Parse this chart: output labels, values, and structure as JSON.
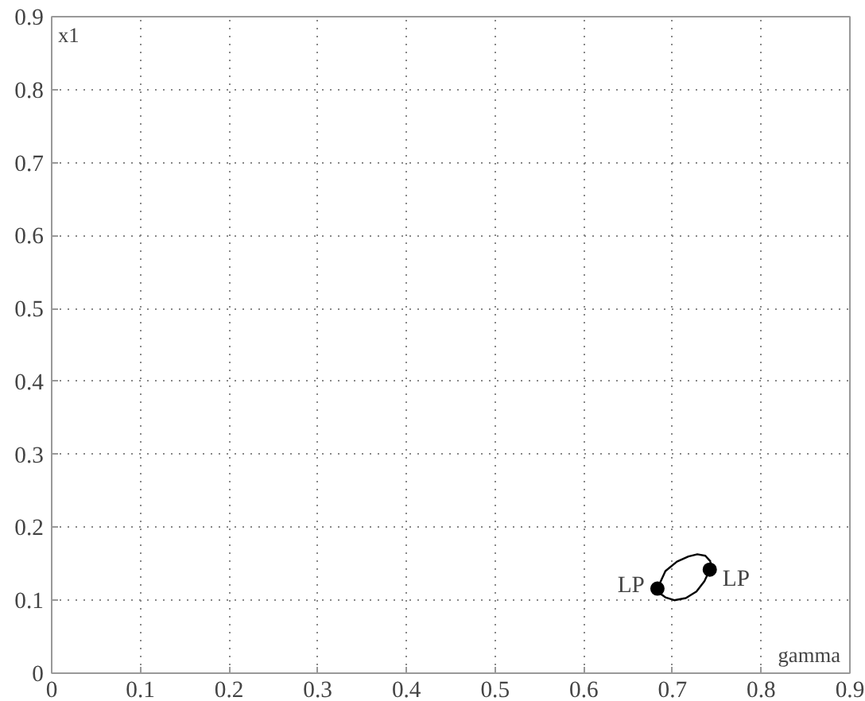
{
  "chart_data": {
    "type": "line",
    "xlabel": "gamma",
    "ylabel": "x1",
    "xlim": [
      0,
      0.9
    ],
    "ylim": [
      0,
      0.9
    ],
    "xticks": [
      0,
      0.1,
      0.2,
      0.3,
      0.4,
      0.5,
      0.6,
      0.7,
      0.8,
      0.9
    ],
    "yticks": [
      0,
      0.1,
      0.2,
      0.3,
      0.4,
      0.5,
      0.6,
      0.7,
      0.8,
      0.9
    ],
    "grid": true,
    "series": [
      {
        "color": "#000000",
        "marker": "none",
        "x": [
          0.683,
          0.692,
          0.705,
          0.718,
          0.728,
          0.737,
          0.743
        ],
        "values": [
          0.116,
          0.14,
          0.153,
          0.16,
          0.163,
          0.161,
          0.153
        ]
      },
      {
        "color": "#000000",
        "marker": "none",
        "x": [
          0.683,
          0.685,
          0.692,
          0.702,
          0.715,
          0.727,
          0.736,
          0.742,
          0.743
        ],
        "values": [
          0.116,
          0.11,
          0.104,
          0.1,
          0.103,
          0.112,
          0.126,
          0.142,
          0.153
        ]
      },
      {
        "type": "scatter",
        "color": "#000000",
        "marker": "circle",
        "x": [
          0.683,
          0.742
        ],
        "values": [
          0.116,
          0.142
        ]
      }
    ],
    "annotations": [
      {
        "text": "LP",
        "x": 0.683,
        "y": 0.116
      },
      {
        "text": "LP",
        "x": 0.742,
        "y": 0.142
      }
    ]
  }
}
